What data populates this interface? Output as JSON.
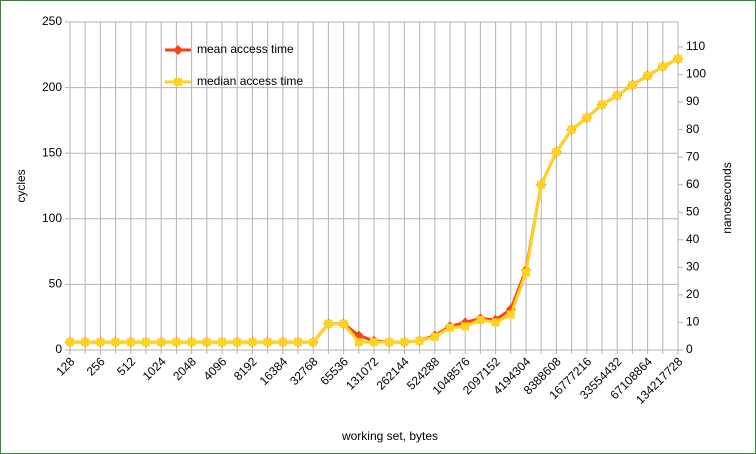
{
  "chart_data": {
    "type": "line",
    "xlabel": "working set, bytes",
    "ylabel": "cycles",
    "y2label": "nanoseconds",
    "categories": [
      "128",
      null,
      "256",
      null,
      "512",
      null,
      "1024",
      null,
      "2048",
      null,
      "4096",
      null,
      "8192",
      null,
      "16384",
      null,
      "32768",
      null,
      "65536",
      null,
      "131072",
      null,
      "262144",
      null,
      "524288",
      null,
      "1048576",
      null,
      "2097152",
      null,
      "4194304",
      null,
      "8388608",
      null,
      "16777216",
      null,
      "33554432",
      null,
      "67108864",
      null,
      "134217728"
    ],
    "series": [
      {
        "name": "mean access time",
        "color": "#ff420e",
        "marker": "diamond",
        "values": [
          6,
          6,
          6,
          6,
          6,
          6,
          6,
          6,
          6,
          6,
          6,
          6,
          6,
          6,
          6,
          6,
          6,
          20,
          20,
          11,
          7,
          6,
          6,
          7,
          11,
          18,
          21,
          24,
          23,
          31,
          61,
          126,
          151,
          168,
          177,
          187,
          194,
          202,
          209,
          216,
          222
        ]
      },
      {
        "name": "median access time",
        "color": "#ffd320",
        "marker": "square",
        "values": [
          6,
          6,
          6,
          6,
          6,
          6,
          6,
          6,
          6,
          6,
          6,
          6,
          6,
          6,
          6,
          6,
          6,
          20,
          20,
          6,
          6,
          6,
          6,
          7,
          10,
          17,
          18,
          23,
          21,
          27,
          59,
          126,
          151,
          168,
          177,
          187,
          194,
          202,
          209,
          216,
          222
        ]
      }
    ],
    "ylim": [
      0,
      250
    ],
    "yticks": [
      0,
      50,
      100,
      150,
      200,
      250
    ],
    "y2lim": [
      0,
      119.05
    ],
    "y2ticks": [
      0,
      10,
      20,
      30,
      40,
      50,
      60,
      70,
      80,
      90,
      100,
      110
    ],
    "grid": true,
    "legend": "upper left"
  }
}
